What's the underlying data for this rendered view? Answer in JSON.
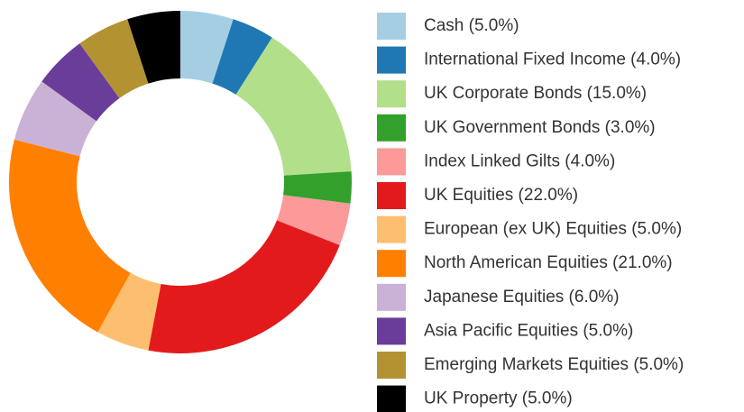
{
  "chart_data": {
    "type": "donut",
    "categories": [
      "Cash (5.0%)",
      "International Fixed Income (4.0%)",
      "UK Corporate Bonds (15.0%)",
      "UK Government Bonds (3.0%)",
      "Index Linked Gilts (4.0%)",
      "UK Equities (22.0%)",
      "European (ex UK) Equities (5.0%)",
      "North American Equities (21.0%)",
      "Japanese Equities (6.0%)",
      "Asia Pacific Equities (5.0%)",
      "Emerging Markets Equities (5.0%)",
      "UK Property (5.0%)"
    ],
    "values": [
      5,
      4,
      15,
      3,
      4,
      22,
      5,
      21,
      6,
      5,
      5,
      5
    ],
    "colors": [
      "#a6cee3",
      "#1f78b4",
      "#b2df8a",
      "#33a02c",
      "#fb9a99",
      "#e31a1c",
      "#fdbf6f",
      "#ff7f00",
      "#cab2d6",
      "#6a3d9a",
      "#b39232",
      "#000000"
    ],
    "legend": "right"
  }
}
